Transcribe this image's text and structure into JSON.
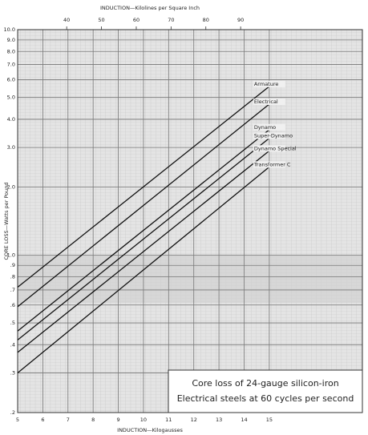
{
  "chart_data": {
    "type": "line",
    "title": "Core loss of 24-gauge silicon-iron",
    "subtitle": "Electrical steels at 60 cycles per second",
    "x_label": "INDUCTION—Kilogausses",
    "x2_label": "INDUCTION—Kilolines per Square Inch",
    "y_label": "CORE LOSS—Watts per Pound",
    "log_y": true,
    "grid": true,
    "xlim": [
      5,
      18.7
    ],
    "xticks": [
      5,
      6,
      7,
      8,
      9,
      10,
      11,
      12,
      13,
      14,
      15
    ],
    "x2lim": [
      25.9,
      125
    ],
    "x2ticks": [
      40,
      50,
      60,
      70,
      80,
      90
    ],
    "ylim": [
      0.2,
      10
    ],
    "yticks": [
      {
        "value": 10,
        "label": "10.0"
      },
      {
        "value": 9,
        "label": "9.0"
      },
      {
        "value": 8,
        "label": "8.0"
      },
      {
        "value": 7,
        "label": "7.0"
      },
      {
        "value": 6,
        "label": "6.0"
      },
      {
        "value": 5,
        "label": "5.0"
      },
      {
        "value": 4,
        "label": "4.0"
      },
      {
        "value": 3,
        "label": "3.0"
      },
      {
        "value": 2,
        "label": "2.0"
      },
      {
        "value": 1,
        "label": "1.0"
      },
      {
        "value": 0.9,
        "label": ".9"
      },
      {
        "value": 0.8,
        "label": ".8"
      },
      {
        "value": 0.7,
        "label": ".7"
      },
      {
        "value": 0.6,
        "label": ".6"
      },
      {
        "value": 0.5,
        "label": ".5"
      },
      {
        "value": 0.4,
        "label": ".4"
      },
      {
        "value": 0.3,
        "label": ".3"
      },
      {
        "value": 0.2,
        "label": ".2"
      }
    ],
    "x": [
      5,
      15
    ],
    "series": [
      {
        "name": "Armature",
        "color": "#111111",
        "values": [
          0.72,
          5.6
        ]
      },
      {
        "name": "Electrical",
        "color": "#111111",
        "values": [
          0.59,
          4.67
        ]
      },
      {
        "name": "Dynamo",
        "color": "#111111",
        "values": [
          0.46,
          3.6
        ]
      },
      {
        "name": "Super-Dynamo",
        "color": "#111111",
        "values": [
          0.42,
          3.3
        ]
      },
      {
        "name": "Dynamo Special",
        "color": "#111111",
        "values": [
          0.37,
          2.9
        ]
      },
      {
        "name": "Transformer C",
        "color": "#111111",
        "values": [
          0.3,
          2.46
        ]
      }
    ]
  }
}
